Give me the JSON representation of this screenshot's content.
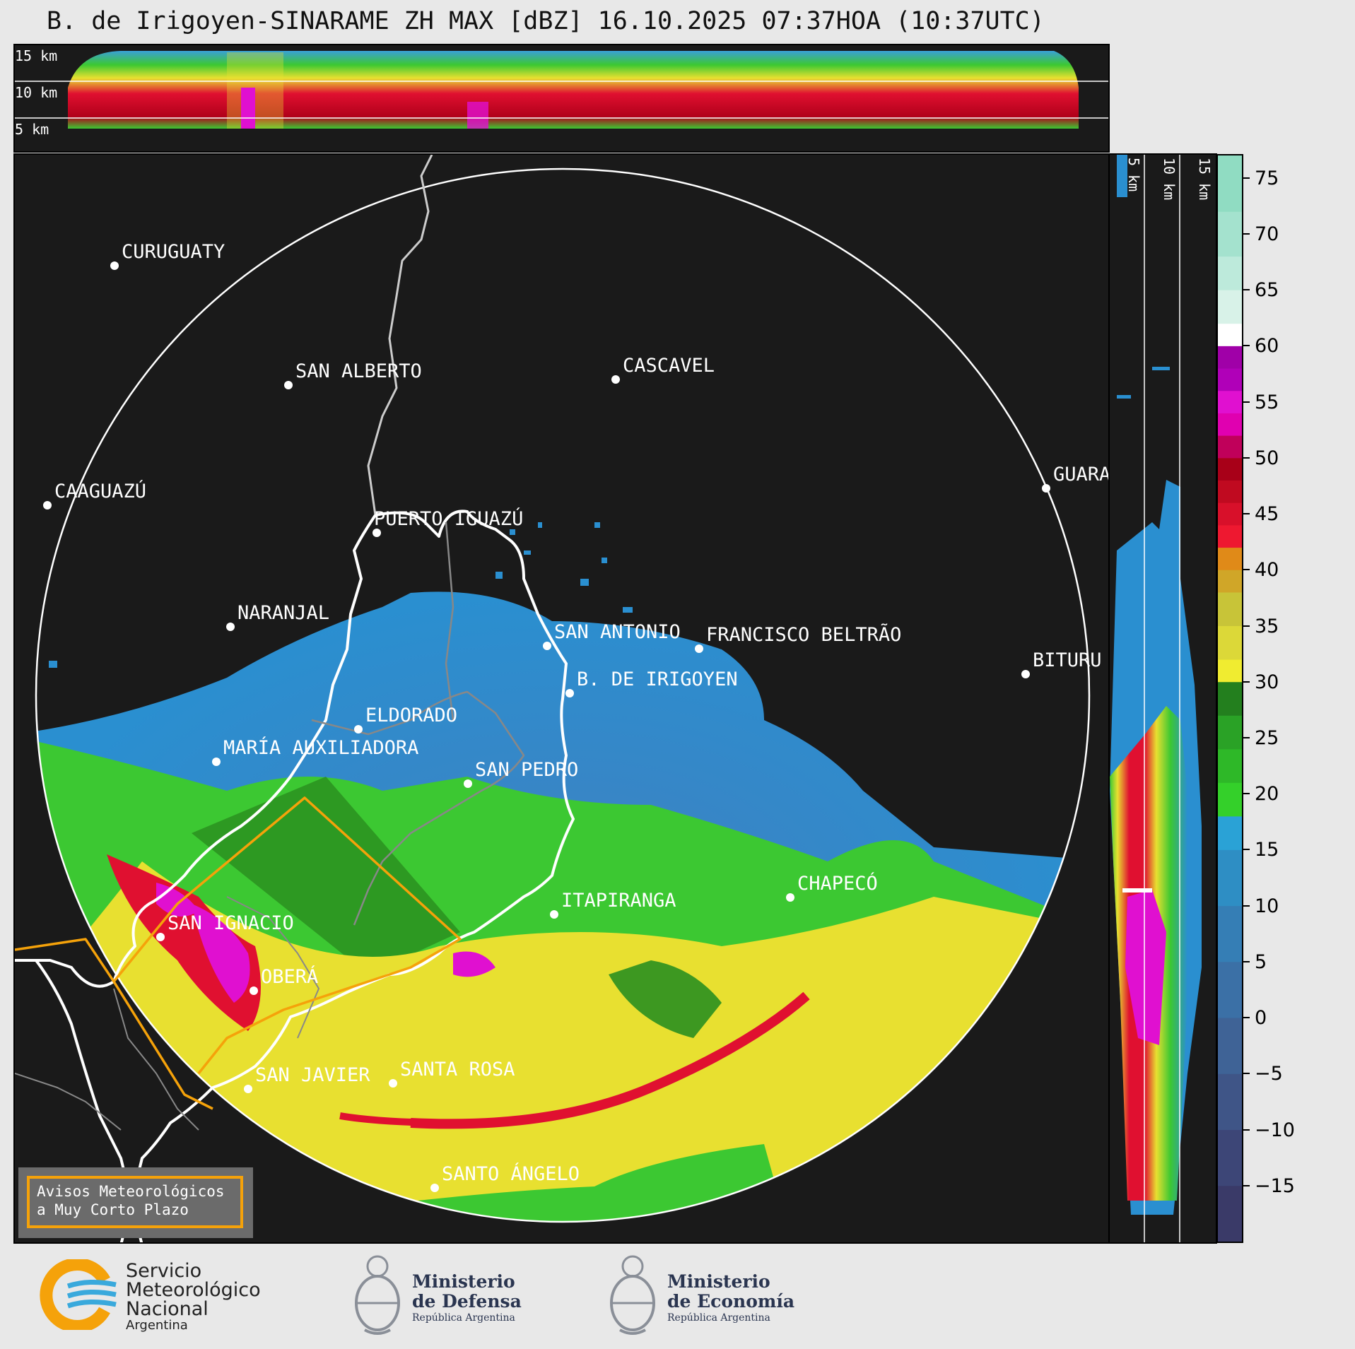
{
  "header": {
    "title": "B. de Irigoyen-SINARAME ZH MAX [dBZ] 16.10.2025 07:37HOA (10:37UTC)"
  },
  "top_panel": {
    "height_labels": [
      "15 km",
      "10 km",
      "5 km"
    ]
  },
  "side_panel": {
    "height_labels": [
      "5 km",
      "10 km",
      "15 km"
    ]
  },
  "map": {
    "cities": [
      {
        "name": "CURUGUATY"
      },
      {
        "name": "SAN ALBERTO"
      },
      {
        "name": "CASCAVEL"
      },
      {
        "name": "CAAGUAZÚ"
      },
      {
        "name": "GUARA"
      },
      {
        "name": "PUERTO IGUAZÚ"
      },
      {
        "name": "NARANJAL"
      },
      {
        "name": "SAN ANTONIO"
      },
      {
        "name": "FRANCISCO BELTRÃO"
      },
      {
        "name": "BITURU"
      },
      {
        "name": "B. DE IRIGOYEN"
      },
      {
        "name": "ELDORADO"
      },
      {
        "name": "MARÍA AUXILIADORA"
      },
      {
        "name": "SAN PEDRO"
      },
      {
        "name": "CHAPECÓ"
      },
      {
        "name": "ITAPIRANGA"
      },
      {
        "name": "SAN IGNACIO"
      },
      {
        "name": "OBERÁ"
      },
      {
        "name": "SAN JAVIER"
      },
      {
        "name": "SANTA ROSA"
      },
      {
        "name": "SANTO ÁNGELO"
      }
    ]
  },
  "colorbar": {
    "ticks": [
      "75",
      "70",
      "65",
      "60",
      "55",
      "50",
      "45",
      "40",
      "35",
      "30",
      "25",
      "20",
      "15",
      "10",
      "5",
      "0",
      "−5",
      "−10",
      "−15"
    ],
    "range": [
      -20,
      77
    ]
  },
  "legend_box": {
    "line1": "Avisos Meteorológicos",
    "line2": "a Muy Corto Plazo"
  },
  "footer": {
    "smn": {
      "line1": "Servicio",
      "line2": "Meteorológico",
      "line3": "Nacional",
      "line4": "Argentina"
    },
    "defensa": {
      "line1": "Ministerio",
      "line2": "de Defensa",
      "line3": "República Argentina"
    },
    "economia": {
      "line1": "Ministerio",
      "line2": "de Economía",
      "line3": "República Argentina"
    }
  },
  "colors": {
    "ring": "#ffffff",
    "province_border": "#ffffff",
    "warning_polygon": "#f5a20a",
    "background": "#1a1a1a"
  }
}
